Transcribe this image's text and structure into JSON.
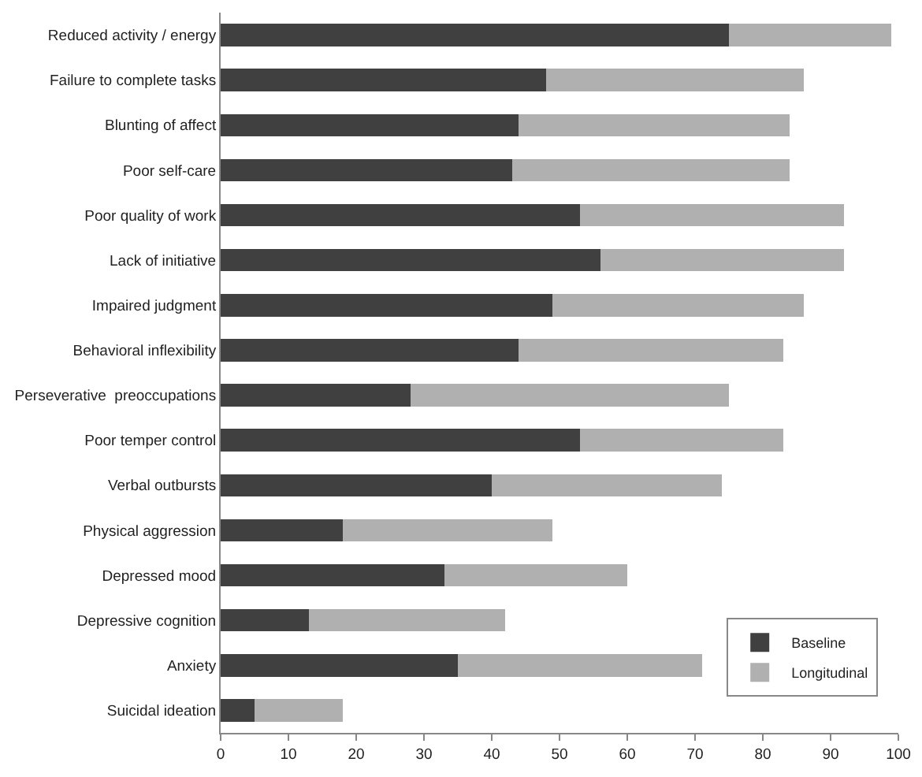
{
  "chart_data": {
    "type": "bar",
    "orientation": "horizontal",
    "stacked": true,
    "categories": [
      "Reduced activity / energy",
      "Failure to complete tasks",
      "Blunting of affect",
      "Poor self-care",
      "Poor quality of work",
      "Lack of initiative",
      "Impaired judgment",
      "Behavioral inflexibility",
      "Perseverative  preoccupations",
      "Poor temper control",
      "Verbal outbursts",
      "Physical aggression",
      "Depressed mood",
      "Depressive cognition",
      "Anxiety",
      "Suicidal ideation"
    ],
    "series": [
      {
        "name": "Baseline",
        "color": "#404040",
        "values": [
          75,
          48,
          44,
          43,
          53,
          56,
          49,
          44,
          28,
          53,
          40,
          18,
          33,
          13,
          35,
          5
        ]
      },
      {
        "name": "Longitudinal",
        "color": "#b0b0b0",
        "values": [
          24,
          38,
          40,
          41,
          39,
          36,
          37,
          39,
          47,
          30,
          34,
          31,
          27,
          29,
          36,
          13
        ]
      }
    ],
    "xlim": [
      0,
      100
    ],
    "xticks": [
      0,
      10,
      20,
      30,
      40,
      50,
      60,
      70,
      80,
      90,
      100
    ],
    "grid": false,
    "legend": "bottom right"
  }
}
